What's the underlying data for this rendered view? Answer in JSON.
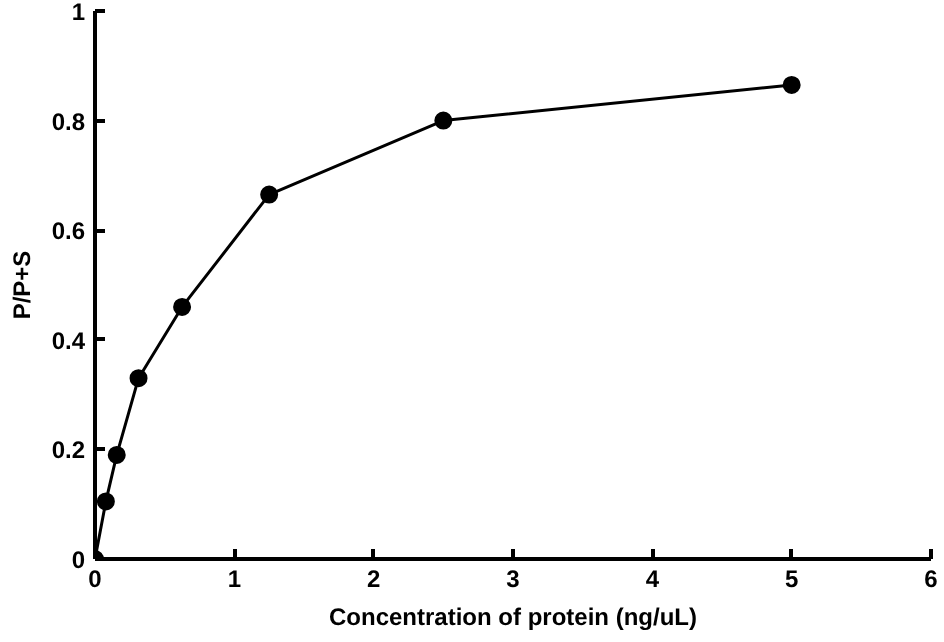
{
  "chart_data": {
    "type": "line",
    "xlabel": "Concentration of protein (ng/uL)",
    "ylabel": "P/P+S",
    "x": [
      0,
      0.078,
      0.156,
      0.3125,
      0.625,
      1.25,
      2.5,
      5
    ],
    "series": [
      {
        "color": "#000000",
        "values": [
          0,
          0.105,
          0.19,
          0.33,
          0.46,
          0.665,
          0.8,
          0.865
        ]
      }
    ],
    "xlim": [
      0,
      6
    ],
    "xticks": [
      0,
      1,
      2,
      3,
      4,
      5,
      6
    ],
    "ylim": [
      0,
      1
    ],
    "yticks": [
      0,
      0.2,
      0.4,
      0.6,
      0.8,
      1
    ],
    "marker": "circle",
    "line_style": "solid",
    "grid": false
  }
}
